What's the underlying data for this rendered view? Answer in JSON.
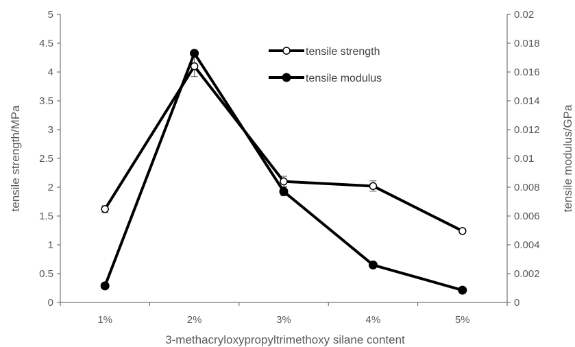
{
  "chart_data": {
    "type": "line",
    "categories": [
      "1%",
      "2%",
      "3%",
      "4%",
      "5%"
    ],
    "xlabel": "3-methacryloxypropyltrimethoxy silane content",
    "ylabel": "tensile strength/MPa",
    "y2label": "tensile modulus/GPa",
    "ylim": [
      0,
      5
    ],
    "y2lim": [
      0,
      0.02
    ],
    "yticks": [
      "0",
      "0.5",
      "1",
      "1.5",
      "2",
      "2.5",
      "3",
      "3.5",
      "4",
      "4.5",
      "5"
    ],
    "y2ticks": [
      "0",
      "0.002",
      "0.004",
      "0.006",
      "0.008",
      "0.01",
      "0.012",
      "0.014",
      "0.016",
      "0.018",
      "0.02"
    ],
    "grid": false,
    "legend_position": "top-right",
    "series": [
      {
        "name": "tensile strength",
        "axis": "left",
        "marker": "open-circle",
        "values": [
          1.62,
          4.1,
          2.1,
          2.02,
          1.24
        ],
        "error": [
          0.06,
          0.18,
          0.09,
          0.09,
          0.03
        ]
      },
      {
        "name": "tensile modulus",
        "axis": "right",
        "marker": "filled-circle",
        "values": [
          0.00115,
          0.0173,
          0.0077,
          0.0026,
          0.00085
        ],
        "error": [
          0,
          0,
          0.0003,
          0,
          0
        ]
      }
    ],
    "colors": {
      "line": "#000000",
      "axis": "#595959",
      "text": "#595959"
    }
  }
}
